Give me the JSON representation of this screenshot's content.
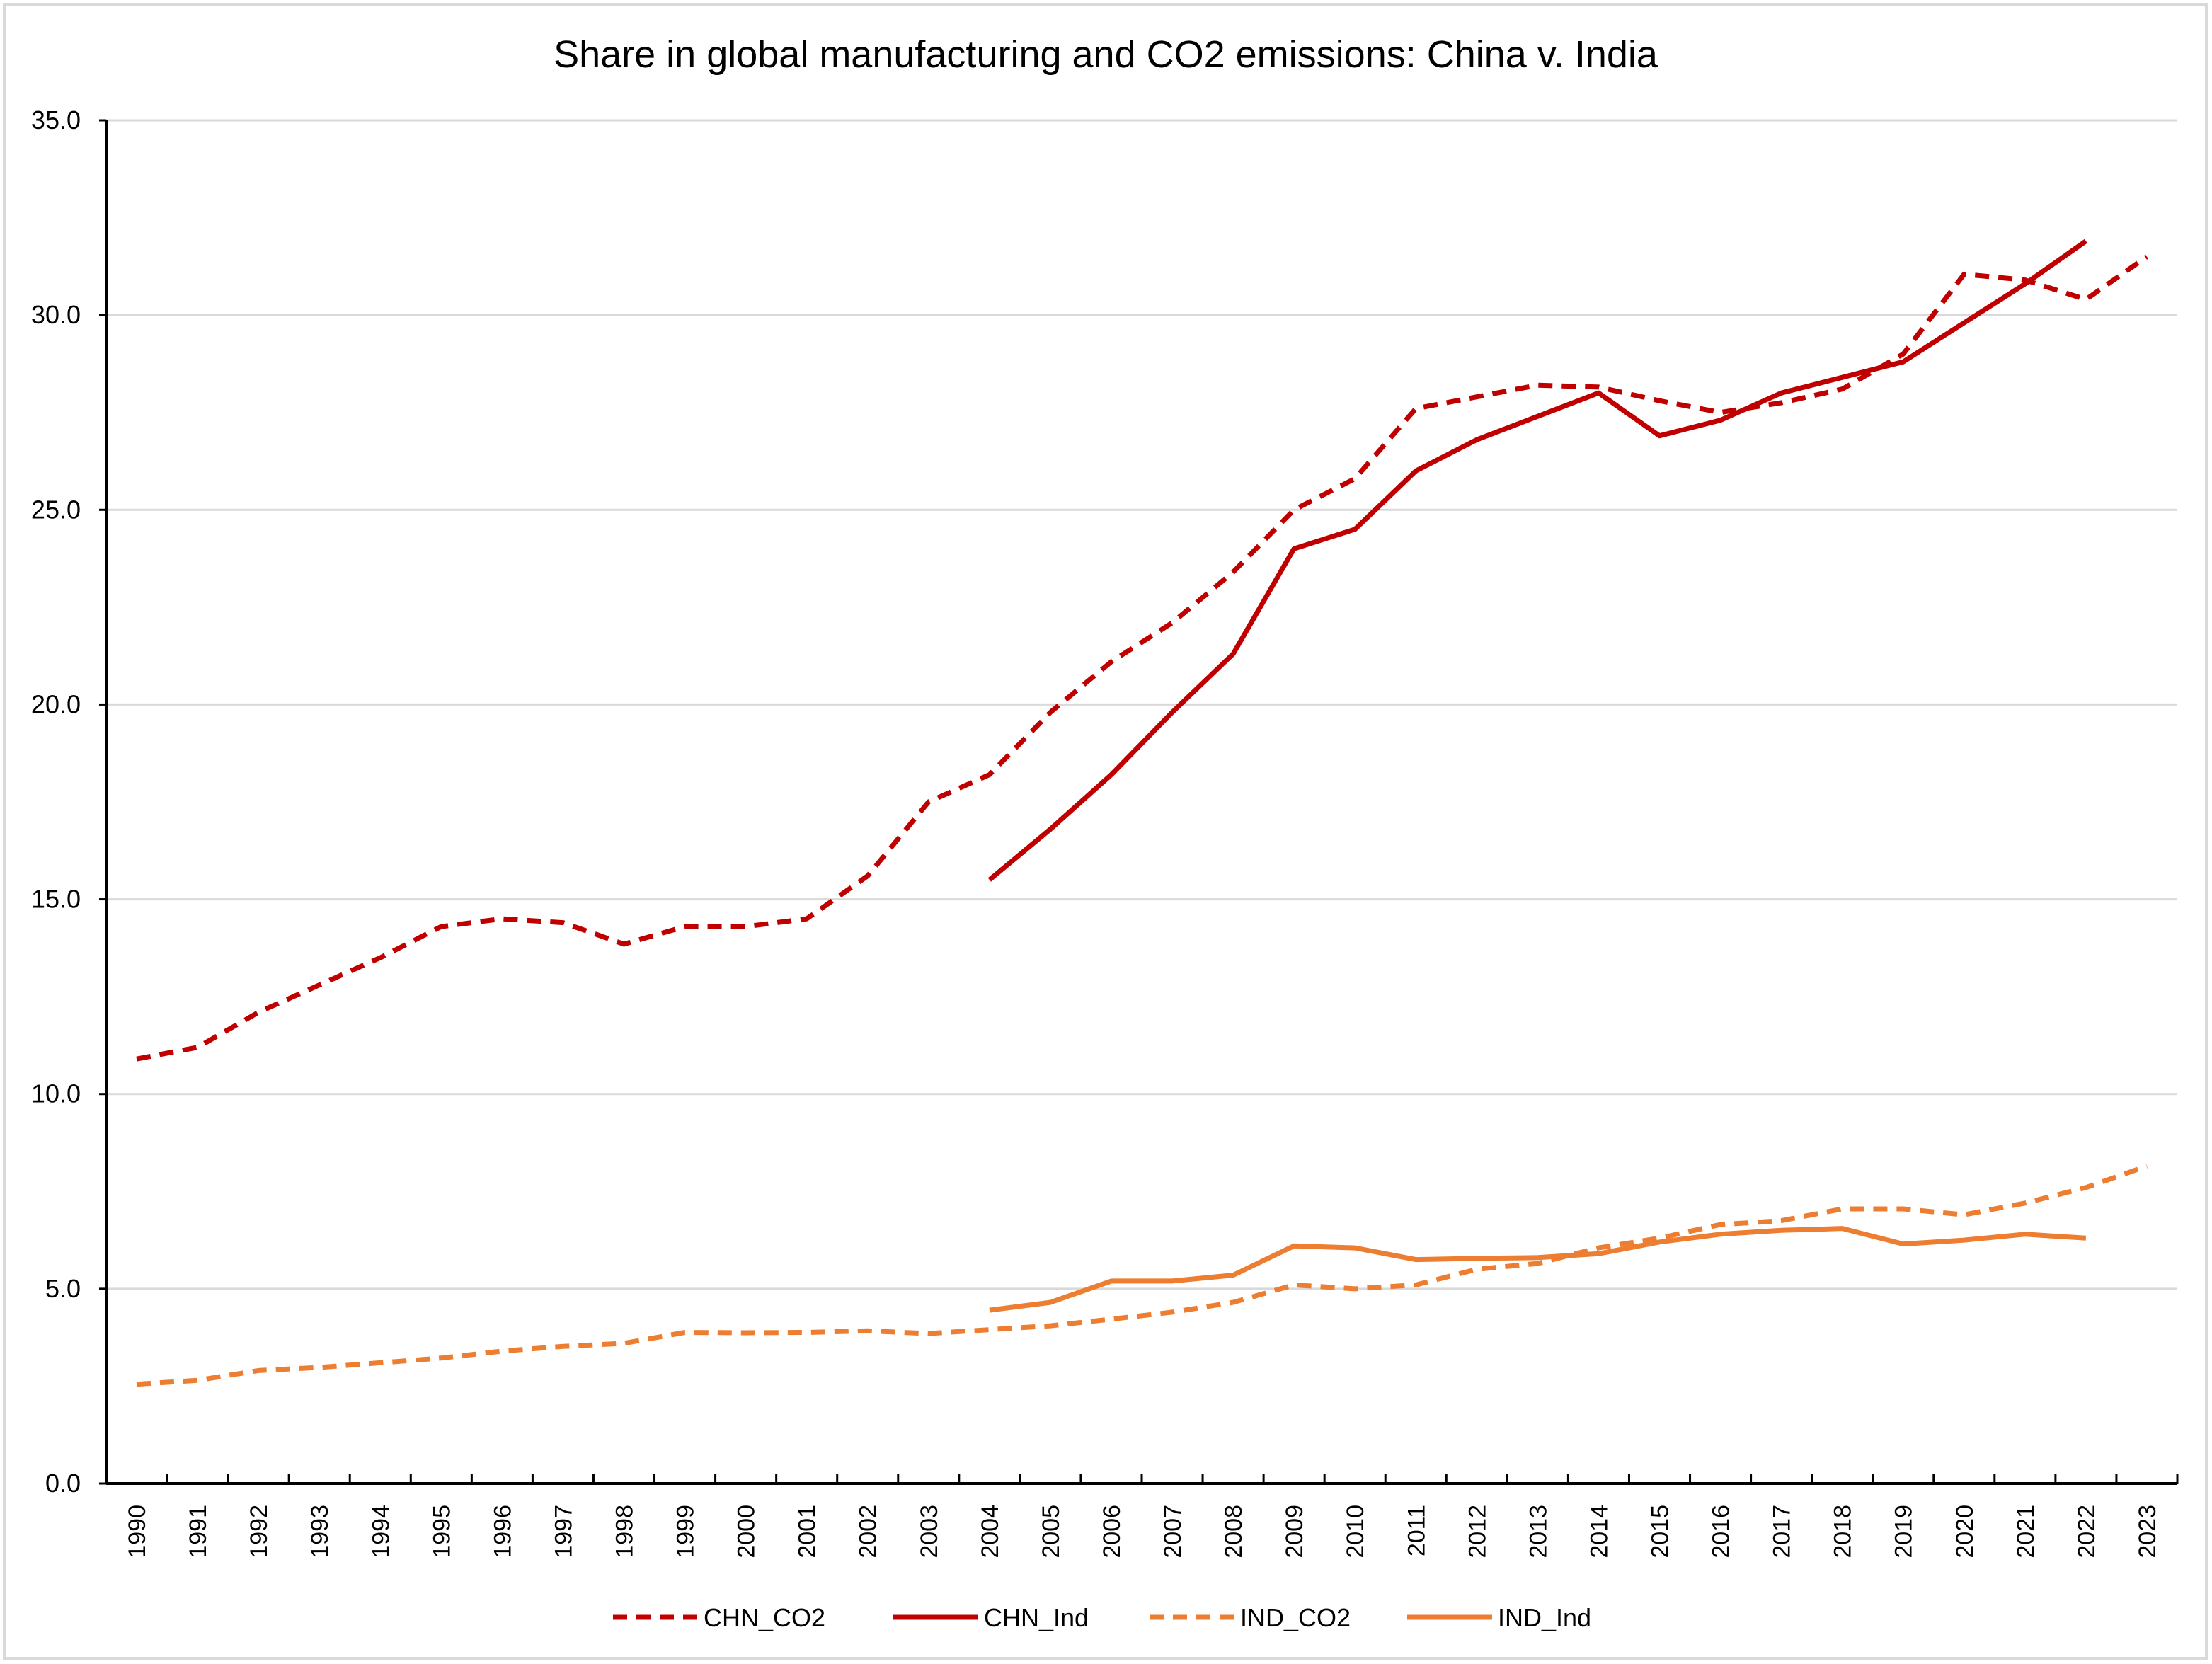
{
  "chart_data": {
    "type": "line",
    "title": "Share in global manufacturing and CO2 emissions: China v. India",
    "xlabel": "",
    "ylabel": "",
    "ylim": [
      0,
      35
    ],
    "yticks": [
      "0.0",
      "5.0",
      "10.0",
      "15.0",
      "20.0",
      "25.0",
      "30.0",
      "35.0"
    ],
    "grid": true,
    "legend_position": "bottom",
    "categories": [
      "1990",
      "1991",
      "1992",
      "1993",
      "1994",
      "1995",
      "1996",
      "1997",
      "1998",
      "1999",
      "2000",
      "2001",
      "2002",
      "2003",
      "2004",
      "2005",
      "2006",
      "2007",
      "2008",
      "2009",
      "2010",
      "2011",
      "2012",
      "2013",
      "2014",
      "2015",
      "2016",
      "2017",
      "2018",
      "2019",
      "2020",
      "2021",
      "2022",
      "2023"
    ],
    "series": [
      {
        "name": "CHN_CO2",
        "color": "#C00000",
        "style": "dashed",
        "values": [
          10.9,
          11.2,
          12.1,
          12.8,
          13.5,
          14.3,
          14.5,
          14.4,
          13.85,
          14.3,
          14.3,
          14.5,
          15.6,
          17.5,
          18.2,
          19.8,
          21.1,
          22.1,
          23.4,
          25.0,
          25.8,
          27.6,
          27.9,
          28.2,
          28.15,
          27.8,
          27.5,
          27.75,
          28.1,
          29.0,
          31.05,
          30.9,
          30.4,
          31.5
        ]
      },
      {
        "name": "CHN_Ind",
        "color": "#C00000",
        "style": "solid",
        "values": [
          null,
          null,
          null,
          null,
          null,
          null,
          null,
          null,
          null,
          null,
          null,
          null,
          null,
          null,
          15.5,
          16.8,
          18.2,
          19.8,
          21.3,
          24.0,
          24.5,
          26.0,
          26.8,
          27.4,
          28.0,
          26.9,
          27.3,
          28.0,
          28.4,
          28.8,
          29.8,
          30.8,
          31.9,
          null
        ]
      },
      {
        "name": "IND_CO2",
        "color": "#ED7D31",
        "style": "dashed",
        "values": [
          2.55,
          2.65,
          2.9,
          2.98,
          3.1,
          3.22,
          3.4,
          3.52,
          3.6,
          3.88,
          3.87,
          3.88,
          3.92,
          3.85,
          3.95,
          4.05,
          4.22,
          4.4,
          4.65,
          5.1,
          5.0,
          5.1,
          5.5,
          5.65,
          6.05,
          6.3,
          6.65,
          6.75,
          7.05,
          7.05,
          6.9,
          7.2,
          7.6,
          8.15
        ]
      },
      {
        "name": "IND_Ind",
        "color": "#ED7D31",
        "style": "solid",
        "values": [
          null,
          null,
          null,
          null,
          null,
          null,
          null,
          null,
          null,
          null,
          null,
          null,
          null,
          null,
          4.45,
          4.65,
          5.2,
          5.2,
          5.35,
          6.1,
          6.05,
          5.75,
          5.78,
          5.8,
          5.9,
          6.2,
          6.4,
          6.5,
          6.55,
          6.15,
          6.25,
          6.4,
          6.3,
          null
        ]
      }
    ]
  }
}
